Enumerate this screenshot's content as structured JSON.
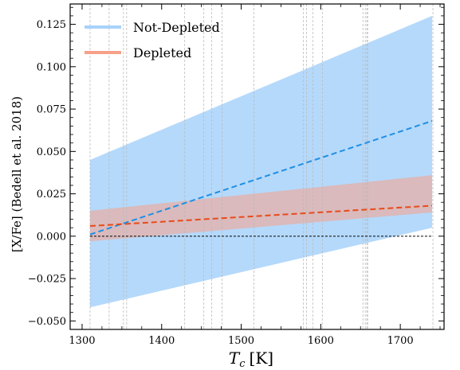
{
  "chart_data": {
    "type": "line",
    "xlabel_symbol": "T",
    "xlabel_subscript": "c",
    "xlabel_unit": "[K]",
    "ylabel": "[X/Fe] (Bedell et al. 2018)",
    "xlim": [
      1285,
      1755
    ],
    "ylim": [
      -0.055,
      0.137
    ],
    "x_ticks": [
      1300,
      1400,
      1500,
      1600,
      1700
    ],
    "x_tick_labels": [
      "1300",
      "1400",
      "1500",
      "1600",
      "1700"
    ],
    "y_ticks": [
      -0.05,
      -0.025,
      0.0,
      0.025,
      0.05,
      0.075,
      0.1,
      0.125
    ],
    "y_tick_labels": [
      "−0.050",
      "−0.025",
      "0.000",
      "0.025",
      "0.050",
      "0.075",
      "0.100",
      "0.125"
    ],
    "legend_position": "top-left",
    "grid": false,
    "series": [
      {
        "name": "Not-Depleted",
        "color": "#1f8fe5",
        "band_color": "#a8d2fa",
        "line_style": "dashed",
        "x": [
          1310,
          1740
        ],
        "y": [
          0.001,
          0.068
        ],
        "band_x": [
          1310,
          1740
        ],
        "band_lower": [
          -0.042,
          0.005
        ],
        "band_upper": [
          0.045,
          0.13
        ]
      },
      {
        "name": "Depleted",
        "color": "#e84a1a",
        "band_color": "#f7a089",
        "line_style": "dashed",
        "x": [
          1310,
          1740
        ],
        "y": [
          0.006,
          0.018
        ],
        "band_x": [
          1310,
          1740
        ],
        "band_lower": [
          -0.003,
          0.014
        ],
        "band_upper": [
          0.015,
          0.036
        ]
      }
    ],
    "reference_line": {
      "y": 0.0,
      "color": "#000000",
      "line_style": "dashed"
    },
    "vertical_markers_x": [
      1310,
      1334,
      1352,
      1356,
      1429,
      1453,
      1463,
      1476,
      1516,
      1578,
      1582,
      1590,
      1602,
      1653,
      1656,
      1658,
      1659,
      1741
    ],
    "vertical_marker_color": "#bbbbbb"
  }
}
